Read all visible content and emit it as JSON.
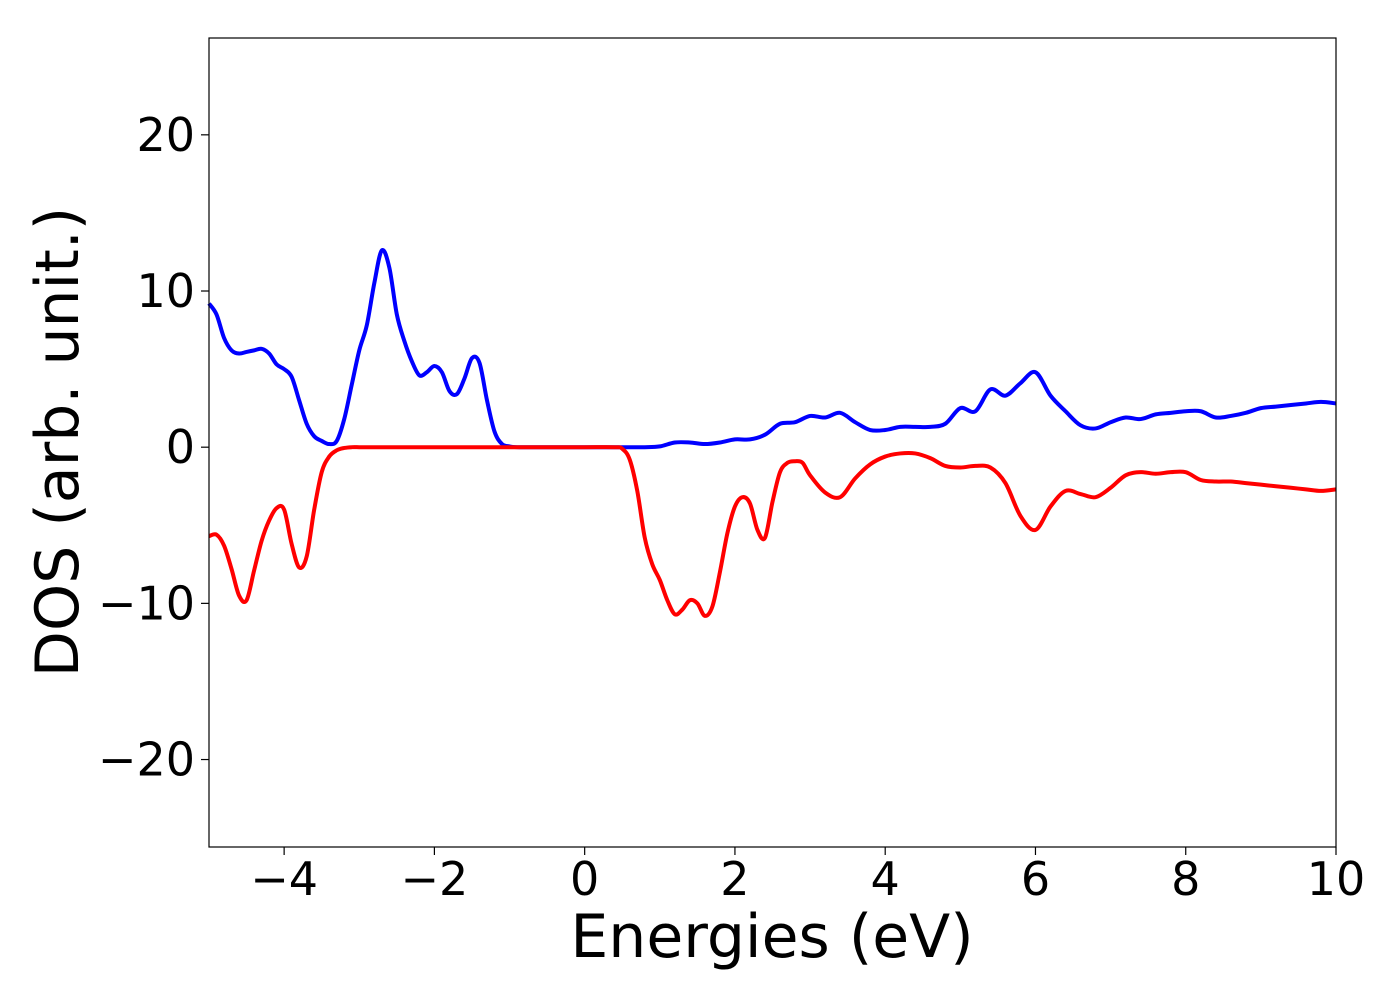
{
  "chart_data": {
    "type": "line",
    "title": "",
    "xlabel": "Energies (eV)",
    "ylabel": "DOS (arb. unit.)",
    "xlim": [
      -5,
      10
    ],
    "ylim": [
      -25.6,
      26.2
    ],
    "grid": false,
    "legend": "none",
    "x_ticks": [
      -4,
      -2,
      0,
      2,
      4,
      6,
      8,
      10
    ],
    "x_tick_labels": [
      "−4",
      "−2",
      "0",
      "2",
      "4",
      "6",
      "8",
      "10"
    ],
    "y_ticks": [
      -20,
      -10,
      0,
      10,
      20
    ],
    "y_tick_labels": [
      "−20",
      "−10",
      "0",
      "10",
      "20"
    ],
    "series": [
      {
        "color": "#0000ff",
        "x": [
          -5.0,
          -4.9,
          -4.8,
          -4.7,
          -4.6,
          -4.5,
          -4.4,
          -4.3,
          -4.2,
          -4.1,
          -4.0,
          -3.9,
          -3.8,
          -3.7,
          -3.6,
          -3.5,
          -3.4,
          -3.3,
          -3.2,
          -3.1,
          -3.0,
          -2.9,
          -2.8,
          -2.7,
          -2.6,
          -2.5,
          -2.4,
          -2.3,
          -2.2,
          -2.1,
          -2.0,
          -1.9,
          -1.8,
          -1.7,
          -1.6,
          -1.5,
          -1.4,
          -1.3,
          -1.2,
          -1.1,
          -1.0,
          -0.9,
          -0.8,
          -0.7,
          -0.6,
          -0.5,
          -0.4,
          -0.2,
          0.0,
          0.2,
          0.4,
          0.6,
          0.8,
          1.0,
          1.2,
          1.4,
          1.6,
          1.8,
          2.0,
          2.2,
          2.4,
          2.6,
          2.8,
          3.0,
          3.2,
          3.4,
          3.6,
          3.8,
          4.0,
          4.2,
          4.4,
          4.6,
          4.8,
          5.0,
          5.2,
          5.4,
          5.6,
          5.8,
          6.0,
          6.2,
          6.4,
          6.6,
          6.8,
          7.0,
          7.2,
          7.4,
          7.6,
          7.8,
          8.0,
          8.2,
          8.4,
          8.6,
          8.8,
          9.0,
          9.2,
          9.4,
          9.6,
          9.8,
          10.0
        ],
        "y": [
          9.2,
          8.5,
          7.0,
          6.2,
          6.0,
          6.1,
          6.2,
          6.3,
          6.0,
          5.3,
          5.0,
          4.5,
          3.0,
          1.5,
          0.7,
          0.4,
          0.2,
          0.4,
          1.8,
          4.0,
          6.2,
          7.8,
          10.5,
          12.6,
          11.5,
          8.5,
          6.8,
          5.5,
          4.6,
          4.8,
          5.2,
          4.8,
          3.6,
          3.4,
          4.4,
          5.7,
          5.4,
          3.0,
          1.0,
          0.2,
          0.05,
          0.0,
          0.0,
          0.0,
          0.0,
          0.0,
          0.0,
          0.0,
          0.0,
          0.0,
          0.0,
          0.0,
          0.0,
          0.05,
          0.3,
          0.3,
          0.2,
          0.3,
          0.5,
          0.5,
          0.8,
          1.5,
          1.6,
          2.0,
          1.9,
          2.2,
          1.6,
          1.1,
          1.1,
          1.3,
          1.3,
          1.3,
          1.5,
          2.5,
          2.3,
          3.7,
          3.3,
          4.1,
          4.8,
          3.3,
          2.3,
          1.4,
          1.2,
          1.6,
          1.9,
          1.8,
          2.1,
          2.2,
          2.3,
          2.3,
          1.9,
          2.0,
          2.2,
          2.5,
          2.6,
          2.7,
          2.8,
          2.9,
          2.8
        ]
      },
      {
        "color": "#ff0000",
        "x": [
          -5.0,
          -4.9,
          -4.8,
          -4.7,
          -4.6,
          -4.5,
          -4.4,
          -4.3,
          -4.2,
          -4.1,
          -4.0,
          -3.9,
          -3.8,
          -3.7,
          -3.6,
          -3.5,
          -3.4,
          -3.3,
          -3.2,
          -3.1,
          -3.0,
          -2.9,
          -2.8,
          -2.6,
          -2.4,
          -2.2,
          -2.0,
          -1.5,
          -1.0,
          -0.5,
          0.0,
          0.4,
          0.5,
          0.6,
          0.7,
          0.8,
          0.9,
          1.0,
          1.1,
          1.2,
          1.3,
          1.4,
          1.5,
          1.6,
          1.7,
          1.8,
          1.9,
          2.0,
          2.1,
          2.2,
          2.3,
          2.4,
          2.5,
          2.6,
          2.7,
          2.8,
          2.9,
          3.0,
          3.2,
          3.4,
          3.6,
          3.8,
          4.0,
          4.2,
          4.4,
          4.6,
          4.8,
          5.0,
          5.2,
          5.4,
          5.6,
          5.8,
          6.0,
          6.2,
          6.4,
          6.6,
          6.8,
          7.0,
          7.2,
          7.4,
          7.6,
          7.8,
          8.0,
          8.2,
          8.4,
          8.6,
          8.8,
          9.0,
          9.2,
          9.4,
          9.6,
          9.8,
          10.0
        ],
        "y": [
          -5.7,
          -5.6,
          -6.3,
          -7.8,
          -9.5,
          -9.8,
          -7.9,
          -6.0,
          -4.7,
          -3.9,
          -4.0,
          -6.2,
          -7.7,
          -7.0,
          -4.0,
          -1.6,
          -0.6,
          -0.2,
          -0.05,
          0.0,
          0.0,
          0.0,
          0.0,
          0.0,
          0.0,
          0.0,
          0.0,
          0.0,
          0.0,
          0.0,
          0.0,
          0.0,
          -0.1,
          -0.8,
          -2.8,
          -5.8,
          -7.5,
          -8.5,
          -9.8,
          -10.7,
          -10.4,
          -9.8,
          -10.0,
          -10.8,
          -10.2,
          -8.0,
          -5.5,
          -3.8,
          -3.2,
          -3.6,
          -5.3,
          -5.8,
          -3.5,
          -1.6,
          -1.0,
          -0.9,
          -1.0,
          -1.8,
          -2.9,
          -3.2,
          -2.0,
          -1.1,
          -0.6,
          -0.4,
          -0.4,
          -0.7,
          -1.2,
          -1.3,
          -1.2,
          -1.3,
          -2.3,
          -4.4,
          -5.3,
          -3.8,
          -2.8,
          -3.0,
          -3.2,
          -2.6,
          -1.8,
          -1.6,
          -1.7,
          -1.6,
          -1.6,
          -2.1,
          -2.2,
          -2.2,
          -2.3,
          -2.4,
          -2.5,
          -2.6,
          -2.7,
          -2.8,
          -2.7
        ]
      }
    ]
  }
}
